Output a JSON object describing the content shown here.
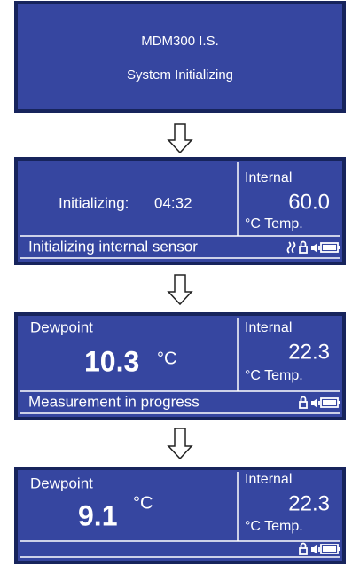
{
  "screens": [
    {
      "title": "MDM300 I.S.",
      "subtitle": "System Initializing"
    },
    {
      "main_label": "Initializing:",
      "main_value": "04:32",
      "side_label": "Internal",
      "side_value": "60.0",
      "side_unit": "°C Temp.",
      "status": "Initializing internal sensor"
    },
    {
      "main_label": "Dewpoint",
      "main_value": "10.3",
      "main_unit": "°C",
      "side_label": "Internal",
      "side_value": "22.3",
      "side_unit": "°C Temp.",
      "status": "Measurement in progress"
    },
    {
      "main_label": "Dewpoint",
      "main_value": "9.1",
      "main_unit": "°C",
      "side_label": "Internal",
      "side_value": "22.3",
      "side_unit": "°C Temp."
    }
  ]
}
